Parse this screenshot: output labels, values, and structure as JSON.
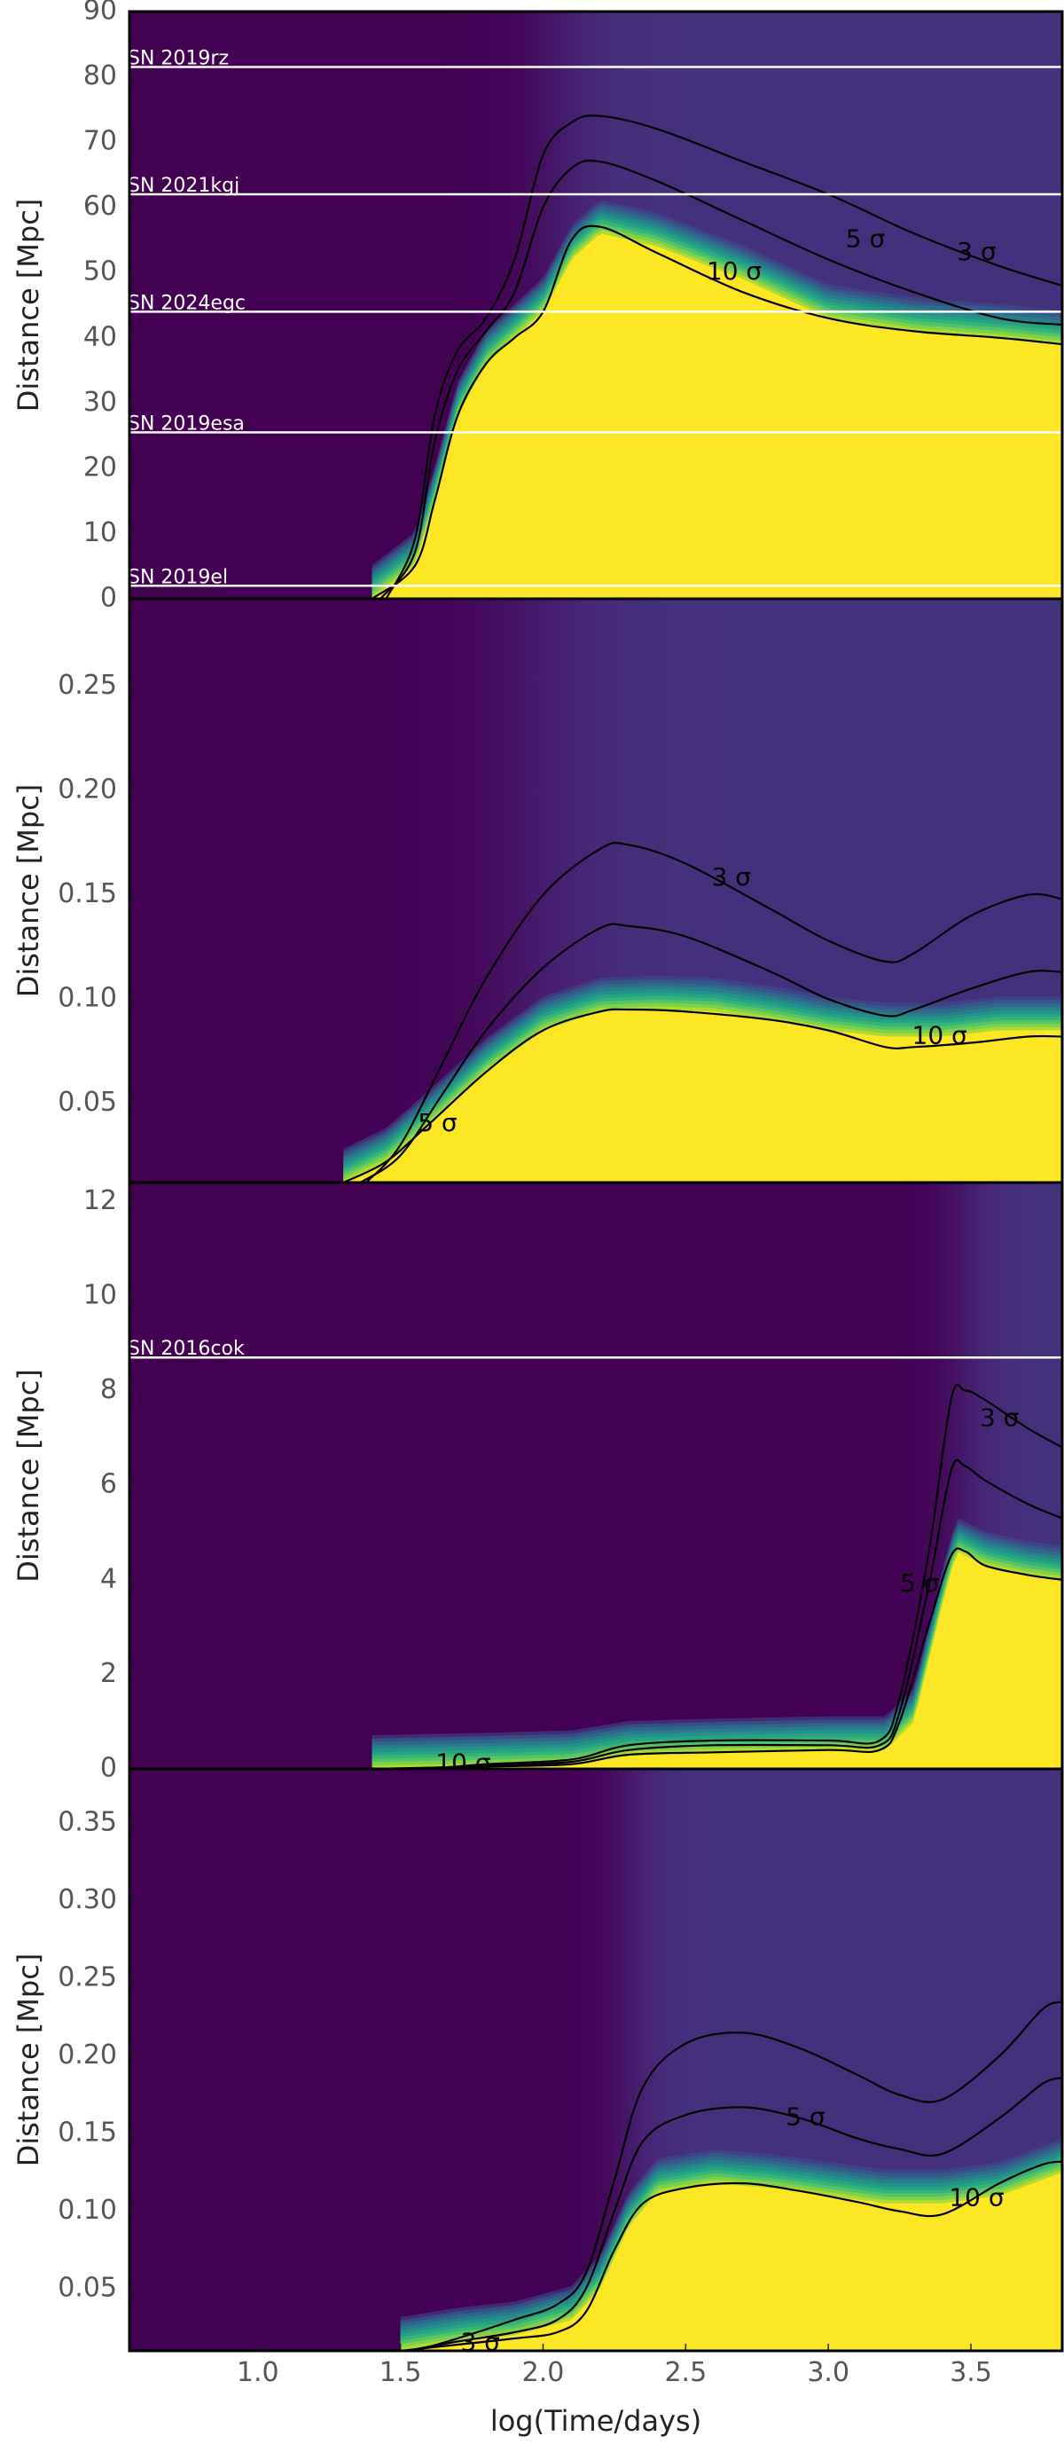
{
  "chart_data": [
    {
      "type": "heatmap",
      "panel": 1,
      "ylabel": "Distance [Mpc]",
      "xlabel": "",
      "xlim": [
        0.55,
        3.82
      ],
      "ylim": [
        0,
        90
      ],
      "yticks": [
        "0",
        "10",
        "20",
        "30",
        "40",
        "50",
        "60",
        "70",
        "80",
        "90"
      ],
      "ytick_values": [
        0,
        10,
        20,
        30,
        40,
        50,
        60,
        70,
        80,
        90
      ],
      "xticks_shown": false,
      "colormap": "viridis",
      "colormap_colors": [
        "#440154",
        "#482475",
        "#3b528b",
        "#2c728e",
        "#21918c",
        "#28ae80",
        "#5ec962",
        "#addc30",
        "#fde725"
      ],
      "rise_center": 2.05,
      "rise_width": 0.18,
      "saturation_distance": {
        "x": [
          1.4,
          1.55,
          1.62,
          1.7,
          1.8,
          1.9,
          2.0,
          2.1,
          2.2,
          2.4,
          2.7,
          3.0,
          3.3,
          3.6,
          3.82
        ],
        "y": [
          0,
          5,
          15,
          28,
          36,
          40,
          44,
          52,
          56,
          54,
          49,
          43,
          41,
          40,
          39
        ]
      },
      "contours": [
        {
          "label": "3 σ",
          "x": [
            1.45,
            1.55,
            1.62,
            1.7,
            1.8,
            1.9,
            2.0,
            2.1,
            2.2,
            2.4,
            2.7,
            3.0,
            3.3,
            3.6,
            3.82
          ],
          "y": [
            0,
            9,
            28,
            38,
            43,
            52,
            68,
            73,
            74,
            72,
            67,
            62,
            56,
            51,
            48
          ],
          "label_x": 3.52,
          "label_y": 53
        },
        {
          "label": "5 σ",
          "x": [
            1.43,
            1.55,
            1.62,
            1.7,
            1.8,
            1.9,
            2.0,
            2.1,
            2.2,
            2.4,
            2.7,
            3.0,
            3.3,
            3.6,
            3.82
          ],
          "y": [
            0,
            7,
            24,
            35,
            41,
            47,
            60,
            66,
            67,
            64,
            58,
            52,
            47,
            43,
            42
          ],
          "label_x": 3.13,
          "label_y": 55
        },
        {
          "label": "10 σ",
          "x": [
            1.4,
            1.55,
            1.62,
            1.7,
            1.8,
            1.9,
            2.0,
            2.1,
            2.2,
            2.4,
            2.7,
            3.0,
            3.3,
            3.6,
            3.82
          ],
          "y": [
            0,
            5,
            15,
            28,
            36,
            40,
            44,
            55,
            57,
            53,
            47,
            43,
            41,
            40,
            39
          ],
          "label_x": 2.67,
          "label_y": 50
        }
      ],
      "hlines": [
        {
          "label": "SN 2019rz",
          "y": 81.5
        },
        {
          "label": "SN 2021kgj",
          "y": 62
        },
        {
          "label": "SN 2024egc",
          "y": 44
        },
        {
          "label": "SN 2019esa",
          "y": 25.5
        },
        {
          "label": "SN 2019el",
          "y": 2
        }
      ]
    },
    {
      "type": "heatmap",
      "panel": 2,
      "ylabel": "Distance [Mpc]",
      "xlabel": "",
      "xlim": [
        0.55,
        3.82
      ],
      "ylim": [
        0.012,
        0.292
      ],
      "yticks": [
        "0.05",
        "0.10",
        "0.15",
        "0.20",
        "0.25"
      ],
      "ytick_values": [
        0.05,
        0.1,
        0.15,
        0.2,
        0.25
      ],
      "xticks_shown": false,
      "colormap": "viridis",
      "rise_center": 1.95,
      "rise_width": 0.3,
      "saturation_distance": {
        "x": [
          1.3,
          1.45,
          1.6,
          1.8,
          2.0,
          2.2,
          2.4,
          2.6,
          2.8,
          3.0,
          3.2,
          3.4,
          3.6,
          3.82
        ],
        "y": [
          0.012,
          0.022,
          0.04,
          0.065,
          0.085,
          0.094,
          0.095,
          0.094,
          0.09,
          0.085,
          0.082,
          0.082,
          0.085,
          0.085
        ]
      },
      "contours": [
        {
          "label": "3 σ",
          "x": [
            1.38,
            1.5,
            1.65,
            1.8,
            2.0,
            2.2,
            2.3,
            2.5,
            2.8,
            3.0,
            3.2,
            3.3,
            3.5,
            3.7,
            3.82
          ],
          "y": [
            0.012,
            0.03,
            0.07,
            0.11,
            0.15,
            0.172,
            0.174,
            0.165,
            0.143,
            0.128,
            0.118,
            0.122,
            0.14,
            0.15,
            0.148
          ],
          "label_x": 2.66,
          "label_y": 0.158
        },
        {
          "label": "5 σ",
          "x": [
            1.36,
            1.5,
            1.65,
            1.8,
            2.0,
            2.2,
            2.3,
            2.5,
            2.8,
            3.0,
            3.2,
            3.3,
            3.5,
            3.7,
            3.82
          ],
          "y": [
            0.012,
            0.025,
            0.055,
            0.085,
            0.115,
            0.134,
            0.135,
            0.13,
            0.113,
            0.1,
            0.092,
            0.095,
            0.105,
            0.113,
            0.113
          ],
          "label_x": 1.63,
          "label_y": 0.04
        },
        {
          "label": "10 σ",
          "x": [
            1.3,
            1.45,
            1.6,
            1.8,
            2.0,
            2.2,
            2.3,
            2.5,
            2.8,
            3.0,
            3.2,
            3.3,
            3.5,
            3.7,
            3.82
          ],
          "y": [
            0.012,
            0.022,
            0.04,
            0.065,
            0.085,
            0.094,
            0.095,
            0.094,
            0.09,
            0.085,
            0.077,
            0.077,
            0.079,
            0.082,
            0.082
          ],
          "label_x": 3.39,
          "label_y": 0.082
        }
      ],
      "hlines": []
    },
    {
      "type": "heatmap",
      "panel": 3,
      "ylabel": "Distance [Mpc]",
      "xlabel": "",
      "xlim": [
        0.55,
        3.82
      ],
      "ylim": [
        0,
        12.4
      ],
      "yticks": [
        "0",
        "2",
        "4",
        "6",
        "8",
        "10",
        "12"
      ],
      "ytick_values": [
        0,
        2,
        4,
        6,
        8,
        10,
        12
      ],
      "xticks_shown": false,
      "colormap": "viridis",
      "rise_center": 3.47,
      "rise_width": 0.12,
      "saturation_distance": {
        "x": [
          1.4,
          1.8,
          2.1,
          2.3,
          2.6,
          3.0,
          3.2,
          3.3,
          3.4,
          3.45,
          3.55,
          3.7,
          3.82
        ],
        "y": [
          0.0,
          0.05,
          0.1,
          0.3,
          0.35,
          0.4,
          0.4,
          1.0,
          3.5,
          4.6,
          4.3,
          4.1,
          4.0
        ]
      },
      "contours": [
        {
          "label": "3 σ",
          "x": [
            1.6,
            1.8,
            2.1,
            2.3,
            2.6,
            3.0,
            3.18,
            3.25,
            3.35,
            3.43,
            3.48,
            3.55,
            3.7,
            3.82
          ],
          "y": [
            0.0,
            0.1,
            0.2,
            0.5,
            0.6,
            0.6,
            0.6,
            1.5,
            4.5,
            7.8,
            8.0,
            7.8,
            7.2,
            6.8
          ],
          "label_x": 3.6,
          "label_y": 7.4
        },
        {
          "label": "5 σ",
          "x": [
            1.5,
            1.8,
            2.1,
            2.3,
            2.6,
            3.0,
            3.18,
            3.25,
            3.35,
            3.43,
            3.48,
            3.55,
            3.7,
            3.82
          ],
          "y": [
            0.0,
            0.07,
            0.15,
            0.4,
            0.5,
            0.5,
            0.5,
            1.2,
            3.8,
            6.3,
            6.4,
            6.1,
            5.6,
            5.3
          ],
          "label_x": 3.32,
          "label_y": 3.9
        },
        {
          "label": "10 σ",
          "x": [
            1.4,
            1.8,
            2.1,
            2.3,
            2.6,
            3.0,
            3.18,
            3.25,
            3.35,
            3.43,
            3.48,
            3.55,
            3.7,
            3.82
          ],
          "y": [
            0.0,
            0.05,
            0.1,
            0.3,
            0.35,
            0.4,
            0.4,
            1.0,
            3.0,
            4.5,
            4.6,
            4.3,
            4.1,
            4.0
          ],
          "label_x": 1.72,
          "label_y": 0.1
        }
      ],
      "hlines": [
        {
          "label": "SN 2016cok",
          "y": 8.7
        }
      ]
    },
    {
      "type": "heatmap",
      "panel": 4,
      "ylabel": "Distance [Mpc]",
      "xlabel": "log(Time/days)",
      "xlim": [
        0.55,
        3.82
      ],
      "ylim": [
        0.01,
        0.385
      ],
      "yticks": [
        "0.05",
        "0.10",
        "0.15",
        "0.20",
        "0.25",
        "0.30",
        "0.35"
      ],
      "ytick_values": [
        0.05,
        0.1,
        0.15,
        0.2,
        0.25,
        0.3,
        0.35
      ],
      "xticks": [
        "1.0",
        "1.5",
        "2.0",
        "2.5",
        "3.0",
        "3.5"
      ],
      "xtick_values": [
        1.0,
        1.5,
        2.0,
        2.5,
        3.0,
        3.5
      ],
      "xticks_shown": true,
      "colormap": "viridis",
      "rise_center": 2.3,
      "rise_width": 0.12,
      "saturation_distance": {
        "x": [
          1.5,
          1.7,
          1.9,
          2.1,
          2.2,
          2.3,
          2.4,
          2.6,
          2.8,
          3.0,
          3.2,
          3.4,
          3.6,
          3.82
        ],
        "y": [
          0.01,
          0.016,
          0.02,
          0.03,
          0.05,
          0.09,
          0.112,
          0.118,
          0.115,
          0.11,
          0.105,
          0.105,
          0.11,
          0.125
        ]
      },
      "contours": [
        {
          "label": "3 σ",
          "x": [
            1.55,
            1.7,
            1.9,
            2.05,
            2.15,
            2.25,
            2.35,
            2.5,
            2.7,
            2.9,
            3.1,
            3.25,
            3.4,
            3.6,
            3.75,
            3.82
          ],
          "y": [
            0.01,
            0.018,
            0.03,
            0.04,
            0.06,
            0.12,
            0.18,
            0.208,
            0.215,
            0.205,
            0.188,
            0.175,
            0.172,
            0.2,
            0.23,
            0.235
          ],
          "label_x": 1.78,
          "label_y": 0.015
        },
        {
          "label": "5 σ",
          "x": [
            1.52,
            1.7,
            1.9,
            2.05,
            2.15,
            2.25,
            2.35,
            2.5,
            2.7,
            2.9,
            3.1,
            3.25,
            3.4,
            3.6,
            3.75,
            3.82
          ],
          "y": [
            0.01,
            0.016,
            0.022,
            0.03,
            0.05,
            0.1,
            0.145,
            0.162,
            0.167,
            0.16,
            0.147,
            0.14,
            0.137,
            0.16,
            0.182,
            0.186
          ],
          "label_x": 2.92,
          "label_y": 0.16
        },
        {
          "label": "10 σ",
          "x": [
            1.5,
            1.7,
            1.9,
            2.05,
            2.15,
            2.25,
            2.35,
            2.5,
            2.7,
            2.9,
            3.1,
            3.25,
            3.4,
            3.6,
            3.75,
            3.82
          ],
          "y": [
            0.01,
            0.014,
            0.018,
            0.022,
            0.035,
            0.075,
            0.105,
            0.115,
            0.118,
            0.113,
            0.106,
            0.1,
            0.098,
            0.118,
            0.13,
            0.132
          ],
          "label_x": 3.52,
          "label_y": 0.108
        }
      ],
      "hlines": []
    }
  ]
}
